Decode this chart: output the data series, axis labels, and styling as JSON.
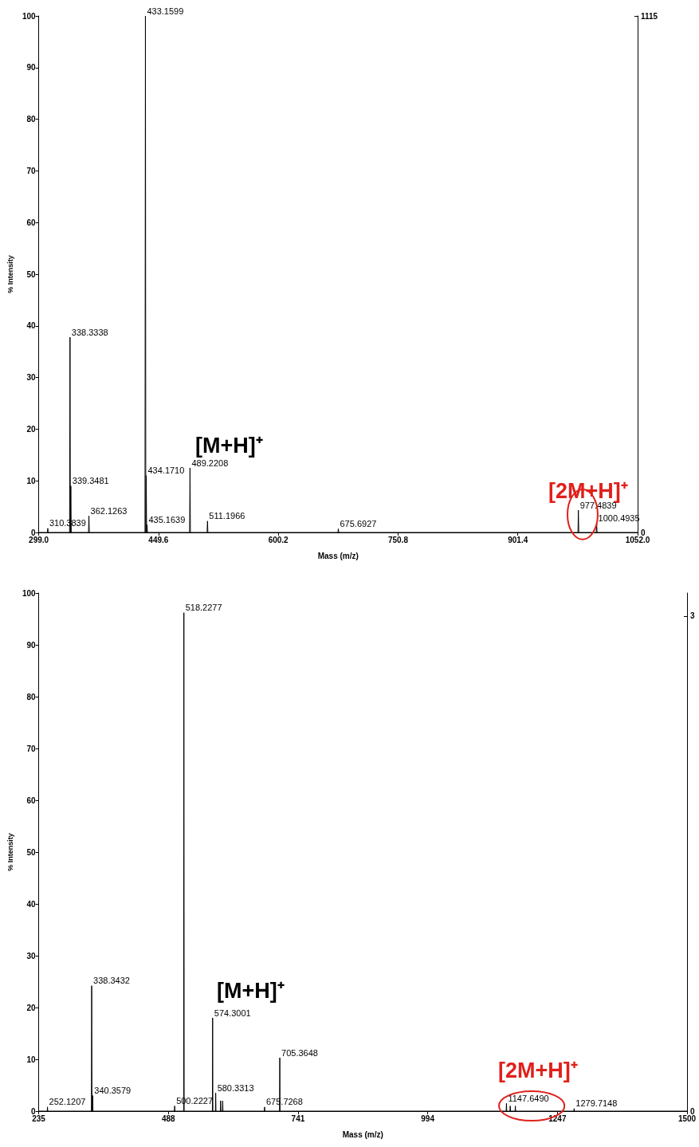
{
  "chart_data": [
    {
      "type": "line",
      "xlabel": "Mass (m/z)",
      "ylabel": "% Intensity",
      "xlim": [
        299,
        1052
      ],
      "xticks": [
        {
          "value": 299,
          "label": "299.0"
        },
        {
          "value": 449.6,
          "label": "449.6"
        },
        {
          "value": 600.2,
          "label": "600.2"
        },
        {
          "value": 750.8,
          "label": "750.8"
        },
        {
          "value": 901.4,
          "label": "901.4"
        },
        {
          "value": 1052,
          "label": "1052.0"
        }
      ],
      "ylim": [
        0,
        100
      ],
      "yticks": [
        0,
        10,
        20,
        30,
        40,
        50,
        60,
        70,
        80,
        90,
        100
      ],
      "y2lim": [
        0,
        1115
      ],
      "y2ticks": [
        0,
        1115
      ],
      "grid": false,
      "marker": "none",
      "line_style": "solid",
      "series": [
        {
          "color": "#000000",
          "x": [
            299,
            309.9,
            310.3839,
            310.9,
            337.8,
            338.3338,
            338.8,
            339.3481,
            339.9,
            361.6,
            362.1263,
            362.6,
            432.6,
            433.1599,
            433.65,
            434.171,
            434.65,
            435.1639,
            435.7,
            488.7,
            489.2208,
            489.7,
            510.7,
            511.1966,
            511.7,
            675.2,
            675.6927,
            676.2,
            977.0,
            977.4839,
            978.0,
            1000.0,
            1000.4935,
            1001.0,
            1052
          ],
          "values": [
            0,
            0,
            0.8,
            0,
            0,
            37.8,
            0,
            9,
            0,
            0,
            3.2,
            0,
            0,
            100,
            0,
            11,
            0,
            1.5,
            0,
            0,
            12.5,
            0,
            0,
            2.2,
            0,
            0,
            0.7,
            0,
            0,
            4.3,
            0,
            0,
            1.7,
            0,
            0
          ]
        }
      ],
      "annotations": [
        "[M+H]⁺",
        "[2M+H]⁺",
        {
          "text": "433.1599",
          "x": 433.1599,
          "y": 100
        },
        {
          "text": "338.3338",
          "x": 338.3338,
          "y": 37.8
        },
        {
          "text": "339.3481",
          "x": 339.3481,
          "y": 9
        },
        {
          "text": "310.3839",
          "x": 310.3839,
          "y": 0.8
        },
        {
          "text": "362.1263",
          "x": 362.1263,
          "y": 3.2
        },
        {
          "text": "434.1710",
          "x": 434.171,
          "y": 11
        },
        {
          "text": "435.1639",
          "x": 435.1639,
          "y": 1.5
        },
        {
          "text": "489.2208",
          "x": 489.2208,
          "y": 12.5
        },
        {
          "text": "511.1966",
          "x": 511.1966,
          "y": 2.2
        },
        {
          "text": "675.6927",
          "x": 675.6927,
          "y": 0.7
        },
        {
          "text": "977.4839",
          "x": 977.4839,
          "y": 4.3
        },
        {
          "text": "1000.4935",
          "x": 1000.4935,
          "y": 1.7
        }
      ]
    },
    {
      "type": "line",
      "xlabel": "Mass (m/z)",
      "ylabel": "% Intensity",
      "xlim": [
        235,
        1500
      ],
      "xticks": [
        235,
        488,
        741,
        994,
        1247,
        1500
      ],
      "ylim": [
        0,
        100
      ],
      "yticks": [
        0,
        10,
        20,
        30,
        40,
        50,
        60,
        70,
        80,
        90,
        100
      ],
      "y2lim": [
        0,
        3.14
      ],
      "y2ticks": [
        0,
        3
      ],
      "grid": false,
      "marker": "none",
      "line_style": "solid",
      "series": [
        {
          "color": "#000000",
          "x": [
            235,
            251.6,
            252.1207,
            252.6,
            337.8,
            338.3432,
            338.9,
            340.3579,
            340.9,
            499.7,
            500.2227,
            500.7,
            517.7,
            518.2277,
            518.8,
            573.8,
            574.3001,
            574.8,
            579.8,
            580.3313,
            580.8,
            589.5,
            590,
            590.5,
            593.5,
            594,
            594.5,
            675.2,
            675.7268,
            676.2,
            704.8,
            705.3648,
            705.9,
            1147.1,
            1147.649,
            1148.2,
            1154.5,
            1155,
            1155.5,
            1164.5,
            1165,
            1165.5,
            1279.2,
            1279.7148,
            1280.2,
            1500
          ],
          "values": [
            0,
            0,
            0.8,
            0,
            0,
            24.2,
            0,
            3,
            0,
            0,
            1,
            0,
            0,
            96.2,
            0,
            0,
            18,
            0,
            0,
            3.5,
            0,
            0,
            2,
            0,
            0,
            2,
            0,
            0,
            0.8,
            0,
            0,
            10.3,
            0,
            0,
            1.5,
            0,
            0,
            1,
            0,
            0,
            1,
            0,
            0,
            0.5,
            0,
            0
          ]
        }
      ],
      "annotations": [
        "[M+H]⁺",
        "[2M+H]⁺",
        {
          "text": "518.2277",
          "x": 518.2277,
          "y": 96.2
        },
        {
          "text": "338.3432",
          "x": 338.3432,
          "y": 24.2
        },
        {
          "text": "252.1207",
          "x": 252.1207,
          "y": 0.8
        },
        {
          "text": "340.3579",
          "x": 340.3579,
          "y": 3
        },
        {
          "text": "500.2227",
          "x": 500.2227,
          "y": 1
        },
        {
          "text": "574.3001",
          "x": 574.3001,
          "y": 18
        },
        {
          "text": "580.3313",
          "x": 580.3313,
          "y": 3.5
        },
        {
          "text": "675.7268",
          "x": 675.7268,
          "y": 0.8
        },
        {
          "text": "705.3648",
          "x": 705.3648,
          "y": 10.3
        },
        {
          "text": "1147.6490",
          "x": 1147.649,
          "y": 1.5
        },
        {
          "text": "1279.7148",
          "x": 1279.7148,
          "y": 0.5
        }
      ]
    }
  ]
}
